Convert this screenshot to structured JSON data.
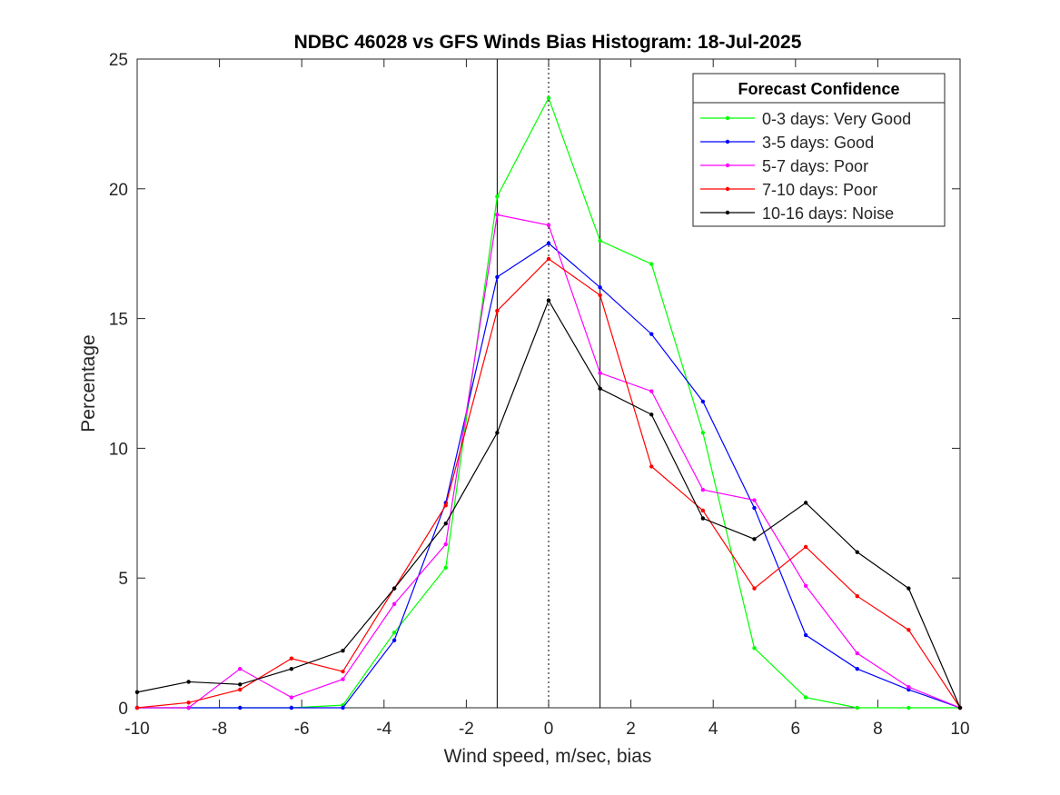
{
  "chart_data": {
    "type": "line",
    "title": "NDBC 46028 vs GFS Winds Bias Histogram: 18-Jul-2025",
    "xlabel": "Wind speed, m/sec, bias",
    "ylabel": "Percentage",
    "xlim": [
      -10,
      10
    ],
    "ylim": [
      0,
      25
    ],
    "xticks": [
      -10,
      -8,
      -6,
      -4,
      -2,
      0,
      2,
      4,
      6,
      8,
      10
    ],
    "yticks": [
      0,
      5,
      10,
      15,
      20,
      25
    ],
    "grid": false,
    "legend_title": "Forecast Confidence",
    "legend_position": "top-right",
    "x": [
      -10,
      -8.75,
      -7.5,
      -6.25,
      -5,
      -3.75,
      -2.5,
      -1.25,
      0,
      1.25,
      2.5,
      3.75,
      5,
      6.25,
      7.5,
      8.75,
      10
    ],
    "series": [
      {
        "name": "0-3 days: Very Good",
        "color": "#00ff00",
        "values": [
          0,
          0,
          0,
          0,
          0.1,
          2.9,
          5.4,
          19.7,
          23.5,
          18.0,
          17.1,
          10.6,
          2.3,
          0.4,
          0,
          0,
          0
        ]
      },
      {
        "name": "3-5 days: Good",
        "color": "#0000ff",
        "values": [
          0,
          0,
          0,
          0,
          0,
          2.6,
          7.9,
          16.6,
          17.9,
          16.2,
          14.4,
          11.8,
          7.7,
          2.8,
          1.5,
          0.7,
          0
        ]
      },
      {
        "name": "5-7 days: Poor",
        "color": "#ff00ff",
        "values": [
          0,
          0,
          1.5,
          0.4,
          1.1,
          4.0,
          6.3,
          19.0,
          18.6,
          12.9,
          12.2,
          8.4,
          8.0,
          4.7,
          2.1,
          0.8,
          0
        ]
      },
      {
        "name": "7-10 days: Poor",
        "color": "#ff0000",
        "values": [
          0,
          0.2,
          0.7,
          1.9,
          1.4,
          4.6,
          7.8,
          15.3,
          17.3,
          15.9,
          9.3,
          7.6,
          4.6,
          6.2,
          4.3,
          3.0,
          0
        ]
      },
      {
        "name": "10-16 days: Noise",
        "color": "#000000",
        "values": [
          0.6,
          1.0,
          0.9,
          1.5,
          2.2,
          4.6,
          7.1,
          10.6,
          15.7,
          12.3,
          11.3,
          7.3,
          6.5,
          7.9,
          6.0,
          4.6,
          0
        ]
      }
    ],
    "vertical_lines": [
      {
        "x": -1.25,
        "style": "solid",
        "color": "#000000"
      },
      {
        "x": 0,
        "style": "dotted",
        "color": "#000000"
      },
      {
        "x": 1.25,
        "style": "solid",
        "color": "#000000"
      }
    ]
  }
}
